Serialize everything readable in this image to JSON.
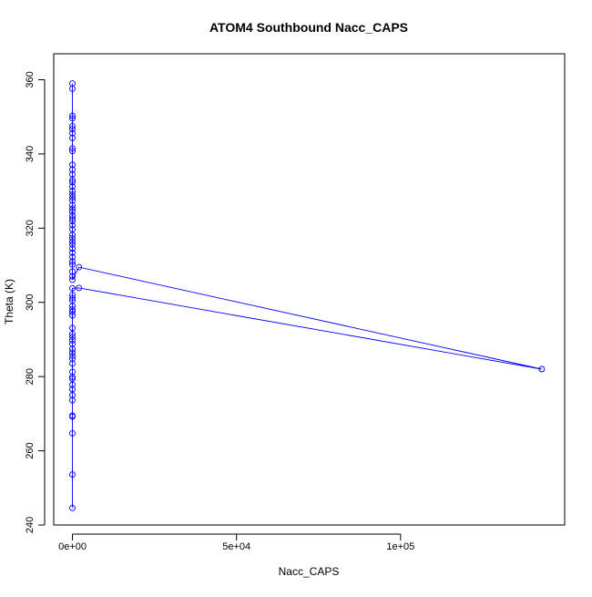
{
  "chart_data": {
    "type": "line",
    "title": "ATOM4 Southbound Nacc_CAPS",
    "xlabel": "Nacc_CAPS",
    "ylabel": "Theta (K)",
    "xlim": [
      -5700,
      150000
    ],
    "ylim": [
      240,
      367
    ],
    "x_ticks": [
      0,
      50000,
      100000
    ],
    "x_tick_labels": [
      "0e+00",
      "5e+04",
      "1e+05"
    ],
    "y_ticks": [
      240,
      260,
      280,
      300,
      320,
      340,
      360
    ],
    "y_tick_labels": [
      "240",
      "260",
      "280",
      "300",
      "320",
      "340",
      "360"
    ],
    "grid": false,
    "series": [
      {
        "color": "#0000ff",
        "marker": "open-circle",
        "line": true,
        "points": [
          [
            0,
            244.6
          ],
          [
            0,
            253.6
          ],
          [
            0,
            264.7
          ],
          [
            0,
            269.2
          ],
          [
            0,
            269.5
          ],
          [
            0,
            273.6
          ],
          [
            0,
            275.0
          ],
          [
            0,
            276.6
          ],
          [
            0,
            277.8
          ],
          [
            0,
            279.4
          ],
          [
            0,
            279.9
          ],
          [
            0,
            281.3
          ],
          [
            0,
            283.5
          ],
          [
            0,
            284.8
          ],
          [
            0,
            285.6
          ],
          [
            0,
            286.5
          ],
          [
            0,
            287.4
          ],
          [
            0,
            288.8
          ],
          [
            0,
            289.8
          ],
          [
            0,
            290.7
          ],
          [
            0,
            291.5
          ],
          [
            0,
            293.1
          ],
          [
            0,
            296.5
          ],
          [
            0,
            297.4
          ],
          [
            0,
            298.1
          ],
          [
            0,
            299.0
          ],
          [
            0,
            300.5
          ],
          [
            0,
            301.2
          ],
          [
            0,
            302.0
          ],
          [
            0,
            303.8
          ],
          [
            2000,
            303.9
          ],
          [
            143000,
            282.0
          ],
          [
            2000,
            309.5
          ],
          [
            0,
            306.1
          ],
          [
            0,
            307.0
          ],
          [
            0,
            308.3
          ],
          [
            0,
            310.2
          ],
          [
            0,
            311.0
          ],
          [
            0,
            312.2
          ],
          [
            0,
            313.4
          ],
          [
            0,
            314.5
          ],
          [
            0,
            315.6
          ],
          [
            0,
            316.4
          ],
          [
            0,
            317.3
          ],
          [
            0,
            318.2
          ],
          [
            0,
            319.7
          ],
          [
            0,
            320.8
          ],
          [
            0,
            321.9
          ],
          [
            0,
            322.6
          ],
          [
            0,
            323.4
          ],
          [
            0,
            324.5
          ],
          [
            0,
            325.3
          ],
          [
            0,
            326.2
          ],
          [
            0,
            327.5
          ],
          [
            0,
            328.3
          ],
          [
            0,
            329.1
          ],
          [
            0,
            330.0
          ],
          [
            0,
            331.2
          ],
          [
            0,
            332.4
          ],
          [
            0,
            333.0
          ],
          [
            0,
            334.5
          ],
          [
            0,
            335.8
          ],
          [
            0,
            337.1
          ],
          [
            0,
            340.8
          ],
          [
            0,
            341.5
          ],
          [
            0,
            344.3
          ],
          [
            0,
            345.6
          ],
          [
            0,
            346.7
          ],
          [
            0,
            347.5
          ],
          [
            0,
            349.6
          ],
          [
            0,
            350.3
          ],
          [
            0,
            357.6
          ],
          [
            0,
            359.0
          ]
        ]
      }
    ]
  }
}
